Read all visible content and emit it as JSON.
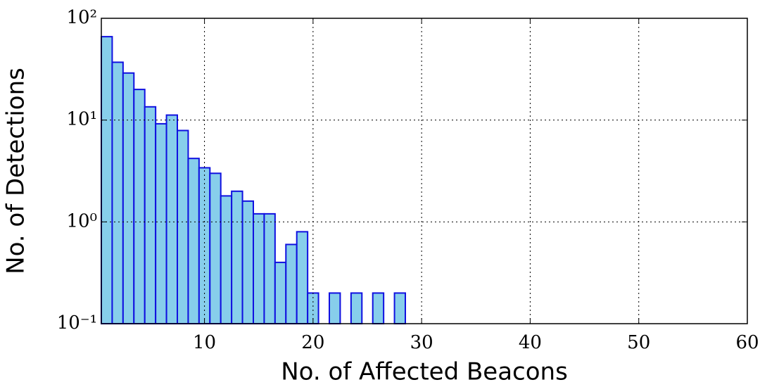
{
  "chart_data": {
    "type": "histogram",
    "x_label": "No. of Affected Beacons",
    "y_label": "No. of Detections",
    "bins": [
      0.5,
      1.5,
      2.5,
      3.5,
      4.5,
      5.5,
      6.5,
      7.5,
      8.5,
      9.5,
      10.5,
      11.5,
      12.5,
      13.5,
      14.5,
      15.5,
      16.5,
      17.5,
      18.5,
      19.5,
      20.5,
      21.5,
      22.5,
      23.5,
      24.5,
      25.5,
      26.5,
      27.5,
      28.5
    ],
    "values": [
      66,
      37,
      29,
      20,
      13.5,
      9.2,
      11.2,
      7.9,
      4.2,
      3.4,
      3.0,
      1.8,
      2.0,
      1.6,
      1.2,
      1.2,
      0.4,
      0.6,
      0.8,
      0.2,
      0,
      0.2,
      0,
      0.2,
      0,
      0.2,
      0,
      0.2
    ],
    "color": "#87ceeb",
    "edge_color": "#1010e0",
    "xlim": [
      0.5,
      60
    ],
    "xticks": [
      10,
      20,
      30,
      40,
      50,
      60
    ],
    "ylim": [
      0.1,
      100
    ],
    "y_scale": "log",
    "yticks": [
      {
        "value": 0.1,
        "label": "10⁻¹"
      },
      {
        "value": 1,
        "label": "10⁰"
      },
      {
        "value": 10,
        "label": "10¹"
      },
      {
        "value": 100,
        "label": "10²"
      }
    ],
    "grid": true
  }
}
